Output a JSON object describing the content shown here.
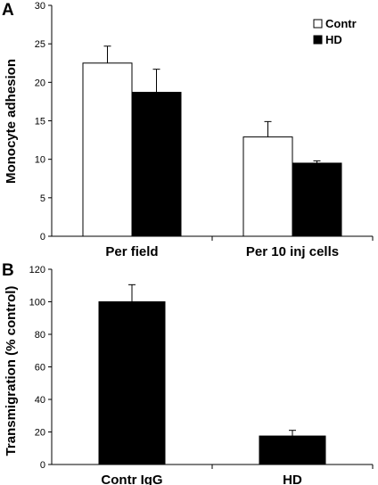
{
  "chart_data": [
    {
      "panel": "A",
      "type": "bar",
      "ylabel": "Monocyte adhesion",
      "ylim": [
        0,
        30
      ],
      "yticks": [
        0,
        5,
        10,
        15,
        20,
        25,
        30
      ],
      "categories": [
        "Per field",
        "Per 10 inj cells"
      ],
      "series": [
        {
          "name": "Contr",
          "color": "#ffffff",
          "values": [
            22.5,
            12.9
          ],
          "errors": [
            2.2,
            2.0
          ]
        },
        {
          "name": "HD",
          "color": "#000000",
          "values": [
            18.7,
            9.5
          ],
          "errors": [
            3.0,
            0.3
          ]
        }
      ],
      "legend": "top-right"
    },
    {
      "panel": "B",
      "type": "bar",
      "ylabel": "Transmigration (% control)",
      "ylim": [
        0,
        120
      ],
      "yticks": [
        0,
        20,
        40,
        60,
        80,
        100,
        120
      ],
      "categories": [
        "Contr IgG",
        "HD"
      ],
      "series": [
        {
          "color": "#000000",
          "values": [
            100,
            17.5
          ],
          "errors": [
            10.5,
            3.5
          ]
        }
      ]
    }
  ]
}
